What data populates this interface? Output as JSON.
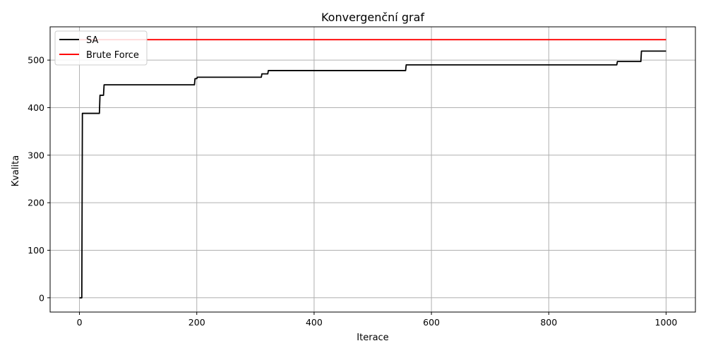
{
  "chart_data": {
    "type": "line",
    "title": "Konvergenční graf",
    "xlabel": "Iterace",
    "ylabel": "Kvalita",
    "xlim": [
      -50,
      1050
    ],
    "ylim": [
      -30,
      570
    ],
    "xticks": [
      0,
      200,
      400,
      600,
      800,
      1000
    ],
    "yticks": [
      0,
      100,
      200,
      300,
      400,
      500
    ],
    "grid": true,
    "legend_position": "top-left",
    "series": [
      {
        "name": "SA",
        "color": "#000000",
        "step": true,
        "points": [
          [
            0,
            0
          ],
          [
            4,
            0
          ],
          [
            5,
            388
          ],
          [
            34,
            388
          ],
          [
            35,
            426
          ],
          [
            41,
            426
          ],
          [
            42,
            448
          ],
          [
            196,
            448
          ],
          [
            197,
            461
          ],
          [
            200,
            461
          ],
          [
            201,
            464
          ],
          [
            310,
            464
          ],
          [
            311,
            471
          ],
          [
            321,
            471
          ],
          [
            322,
            478
          ],
          [
            556,
            478
          ],
          [
            557,
            490
          ],
          [
            916,
            490
          ],
          [
            917,
            497
          ],
          [
            957,
            497
          ],
          [
            958,
            519
          ],
          [
            1000,
            519
          ]
        ]
      },
      {
        "name": "Brute Force",
        "color": "#ff0000",
        "step": false,
        "points": [
          [
            0,
            543
          ],
          [
            1000,
            543
          ]
        ]
      }
    ]
  }
}
